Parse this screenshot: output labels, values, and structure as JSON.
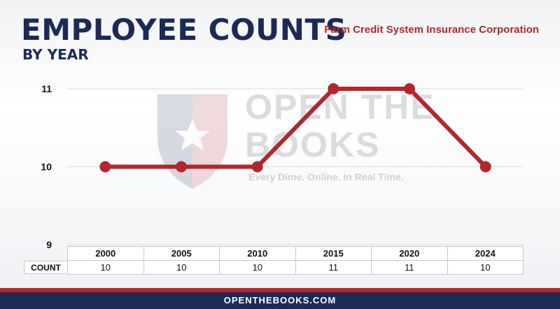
{
  "header": {
    "title": "EMPLOYEE COUNTS",
    "subtitle": "BY YEAR",
    "agency": "Farm Credit System Insurance Corporation"
  },
  "watermark": {
    "line1": "OPEN THE",
    "line2": "BOOKS",
    "tagline": "Every Dime. Online. In Real Time."
  },
  "table": {
    "row_label": "COUNT"
  },
  "footer": {
    "text": "OPENTHEBOOKS.COM"
  },
  "colors": {
    "line": "#b3262b",
    "title": "#1b2a57",
    "footer": "#1b2a57"
  },
  "chart_data": {
    "type": "line",
    "x": [
      "2000",
      "2005",
      "2010",
      "2015",
      "2020",
      "2024"
    ],
    "series": [
      {
        "values": [
          10,
          10,
          10,
          11,
          11,
          10
        ]
      }
    ],
    "yticks": [
      9,
      10,
      11
    ],
    "ylim": [
      9,
      11
    ],
    "grid": true
  }
}
